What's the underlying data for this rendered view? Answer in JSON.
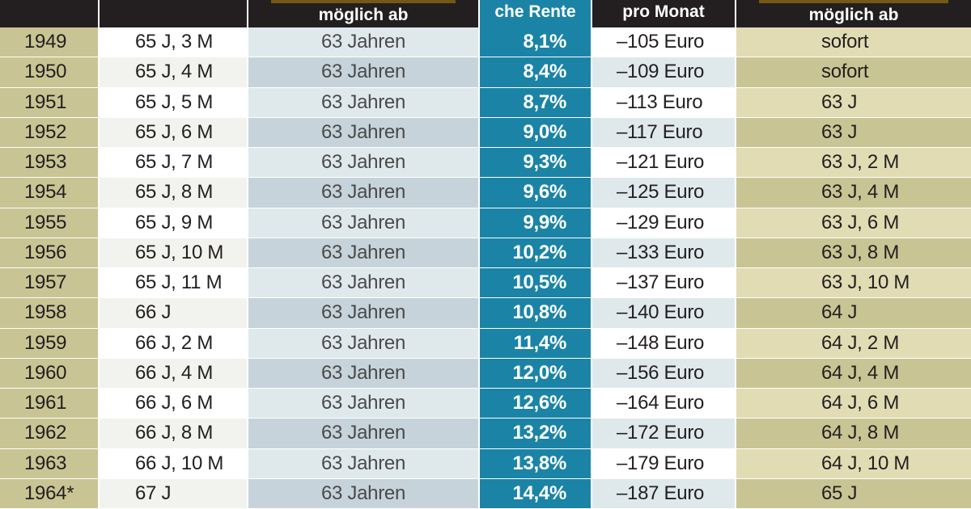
{
  "header": {
    "year": "",
    "age": "",
    "early": "möglich ab",
    "pct": "che Rente",
    "loss": "pro Monat",
    "new": "möglich ab"
  },
  "rows": [
    {
      "year": "1949",
      "age": "65 J,  3 M",
      "early": "63 Jahren",
      "pct": "8,1%",
      "loss": "–105 Euro",
      "new": "sofort"
    },
    {
      "year": "1950",
      "age": "65 J,  4 M",
      "early": "63 Jahren",
      "pct": "8,4%",
      "loss": "–109 Euro",
      "new": "sofort"
    },
    {
      "year": "1951",
      "age": "65 J,  5 M",
      "early": "63 Jahren",
      "pct": "8,7%",
      "loss": "–113 Euro",
      "new": "63 J"
    },
    {
      "year": "1952",
      "age": "65 J,  6 M",
      "early": "63 Jahren",
      "pct": "9,0%",
      "loss": "–117 Euro",
      "new": "63 J"
    },
    {
      "year": "1953",
      "age": "65 J,  7 M",
      "early": "63 Jahren",
      "pct": "9,3%",
      "loss": "–121 Euro",
      "new": "63 J,  2 M"
    },
    {
      "year": "1954",
      "age": "65 J,  8 M",
      "early": "63 Jahren",
      "pct": "9,6%",
      "loss": "–125 Euro",
      "new": "63 J,  4 M"
    },
    {
      "year": "1955",
      "age": "65 J,  9 M",
      "early": "63 Jahren",
      "pct": "9,9%",
      "loss": "–129 Euro",
      "new": "63 J,  6 M"
    },
    {
      "year": "1956",
      "age": "65 J, 10 M",
      "early": "63 Jahren",
      "pct": "10,2%",
      "loss": "–133 Euro",
      "new": "63 J,  8 M"
    },
    {
      "year": "1957",
      "age": "65 J,  11 M",
      "early": "63 Jahren",
      "pct": "10,5%",
      "loss": "–137 Euro",
      "new": "63 J, 10 M"
    },
    {
      "year": "1958",
      "age": "66 J",
      "early": "63 Jahren",
      "pct": "10,8%",
      "loss": "–140 Euro",
      "new": "64 J"
    },
    {
      "year": "1959",
      "age": "66 J,  2 M",
      "early": "63 Jahren",
      "pct": "11,4%",
      "loss": "–148 Euro",
      "new": "64 J,  2 M"
    },
    {
      "year": "1960",
      "age": "66 J,  4 M",
      "early": "63 Jahren",
      "pct": "12,0%",
      "loss": "–156 Euro",
      "new": "64 J,  4 M"
    },
    {
      "year": "1961",
      "age": "66 J,  6 M",
      "early": "63 Jahren",
      "pct": "12,6%",
      "loss": "–164 Euro",
      "new": "64 J,  6 M"
    },
    {
      "year": "1962",
      "age": "66 J,  8 M",
      "early": "63 Jahren",
      "pct": "13,2%",
      "loss": "–172 Euro",
      "new": "64 J,  8 M"
    },
    {
      "year": "1963",
      "age": "66 J, 10 M",
      "early": "63 Jahren",
      "pct": "13,8%",
      "loss": "–179 Euro",
      "new": "64 J, 10 M"
    },
    {
      "year": "1964*",
      "age": "67 J",
      "early": "63 Jahren",
      "pct": "14,4%",
      "loss": "–187 Euro",
      "new": "65 J"
    }
  ]
}
